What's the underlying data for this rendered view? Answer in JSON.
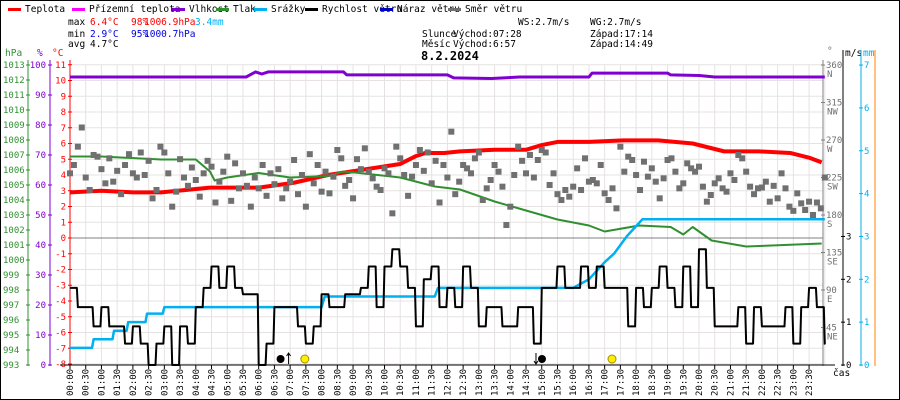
{
  "legend": [
    {
      "label": "Teplota",
      "color": "#ff0000"
    },
    {
      "label": "Přízemní teplota",
      "color": "#ff00ff"
    },
    {
      "label": "Vlhkost",
      "color": "#8000d0"
    },
    {
      "label": "Tlak",
      "color": "#309030"
    },
    {
      "label": "Srážky",
      "color": "#00b0f0"
    },
    {
      "label": "Rychlost větru",
      "color": "#000000"
    },
    {
      "label": "Náraz větru",
      "color": "#0000c0"
    },
    {
      "label": "Směr větru",
      "color": "#707070"
    }
  ],
  "stats": {
    "max_label": "max",
    "min_label": "min",
    "avg_label": "avg",
    "max_temp": "6.4°C",
    "max_hum": "98%",
    "max_press": "1006.9hPa",
    "max_rain": "3.4mm",
    "min_temp": "2.9°C",
    "min_hum": "95%",
    "min_press": "1000.7hPa",
    "avg_temp": "4.7°C"
  },
  "wind_info": {
    "ws": "WS:2.7m/s",
    "wg": "WG:2.7m/s"
  },
  "sun": {
    "label": "Slunce",
    "rise": "Východ:07:28",
    "set": "Západ:17:14"
  },
  "moon": {
    "label": "Měsíc",
    "rise": "Východ:6:57",
    "set": "Západ:14:49"
  },
  "axes_units": {
    "pressure": "hPa",
    "humidity": "%",
    "temp": "°C",
    "direction": "°",
    "speed": "m/s",
    "rain": "mm",
    "time": "čas"
  },
  "colors": {
    "temp": "#ff0000",
    "humidity": "#8000d0",
    "pressure": "#309030",
    "rain": "#00b0f0",
    "wind": "#000000",
    "direction": "#707070",
    "rain_axis": "#00b0f0",
    "extra_axis": "#ff8000"
  },
  "chart_data": {
    "type": "line",
    "title": "8.2.2024",
    "xlabel": "čas",
    "x_unit": "hours",
    "xlim": [
      0,
      24
    ],
    "x_ticks": [
      "00:00",
      "00:30",
      "01:00",
      "01:30",
      "02:00",
      "02:30",
      "03:00",
      "03:30",
      "04:00",
      "04:30",
      "05:00",
      "05:30",
      "06:00",
      "06:30",
      "07:00",
      "07:30",
      "08:00",
      "08:30",
      "09:00",
      "09:30",
      "10:00",
      "10:30",
      "11:00",
      "11:30",
      "12:00",
      "12:30",
      "13:00",
      "13:30",
      "14:00",
      "14:30",
      "15:00",
      "15:30",
      "16:00",
      "16:30",
      "17:00",
      "17:30",
      "18:00",
      "18:30",
      "19:00",
      "19:30",
      "20:00",
      "20:30",
      "21:00",
      "21:30",
      "22:00",
      "22:30",
      "23:00",
      "23:30"
    ],
    "axes": {
      "pressure": {
        "label": "hPa",
        "range": [
          993,
          1013
        ]
      },
      "humidity": {
        "label": "%",
        "range": [
          0,
          100
        ],
        "ticks": [
          0,
          10,
          20,
          30,
          40,
          50,
          60,
          70,
          80,
          90,
          100
        ]
      },
      "temp": {
        "label": "°C",
        "range": [
          -8,
          11
        ]
      },
      "direction": {
        "label": "°",
        "ticks": [
          {
            "v": 45,
            "c": "NE"
          },
          {
            "v": 90,
            "c": "E"
          },
          {
            "v": 135,
            "c": "SE"
          },
          {
            "v": 180,
            "c": "S"
          },
          {
            "v": 225,
            "c": "SW"
          },
          {
            "v": 270,
            "c": "W"
          },
          {
            "v": 315,
            "c": "NW"
          },
          {
            "v": 360,
            "c": "N"
          }
        ]
      },
      "speed": {
        "label": "m/s",
        "range": [
          0,
          7
        ],
        "ticks": [
          0,
          1,
          2,
          3
        ]
      },
      "rain": {
        "label": "mm",
        "range": [
          0,
          7
        ],
        "ticks": [
          0,
          1,
          2,
          3,
          4,
          5,
          6,
          7
        ]
      }
    },
    "series": [
      {
        "name": "Teplota",
        "axis": "temp",
        "points": [
          [
            0,
            2.9
          ],
          [
            1,
            3.0
          ],
          [
            2,
            2.9
          ],
          [
            2.9,
            2.9
          ],
          [
            4.45,
            3.2
          ],
          [
            6,
            3.2
          ],
          [
            7.1,
            3.5
          ],
          [
            8.2,
            4.0
          ],
          [
            9.2,
            4.3
          ],
          [
            10.5,
            4.7
          ],
          [
            11,
            5.2
          ],
          [
            11.3,
            5.4
          ],
          [
            11.9,
            5.4
          ],
          [
            12.4,
            5.5
          ],
          [
            13.5,
            5.6
          ],
          [
            14.5,
            5.6
          ],
          [
            15,
            5.9
          ],
          [
            15.5,
            6.1
          ],
          [
            16.5,
            6.1
          ],
          [
            17.6,
            6.2
          ],
          [
            18.7,
            6.2
          ],
          [
            19.8,
            6.0
          ],
          [
            20.8,
            5.5
          ],
          [
            21.9,
            5.5
          ],
          [
            22.9,
            5.4
          ],
          [
            23.5,
            5.1
          ],
          [
            23.9,
            4.8
          ]
        ]
      },
      {
        "name": "Vlhkost",
        "axis": "humidity",
        "points": [
          [
            0,
            96
          ],
          [
            5.6,
            96
          ],
          [
            5.9,
            97.7
          ],
          [
            6.1,
            97
          ],
          [
            6.3,
            97.7
          ],
          [
            8.7,
            97.7
          ],
          [
            8.8,
            96.7
          ],
          [
            12,
            96.7
          ],
          [
            12.2,
            95.7
          ],
          [
            13.4,
            95.5
          ],
          [
            14.3,
            96
          ],
          [
            16.5,
            96
          ],
          [
            16.6,
            97.3
          ],
          [
            19,
            97.3
          ],
          [
            19.1,
            96.7
          ],
          [
            20,
            96.5
          ],
          [
            20.5,
            96
          ],
          [
            24,
            96
          ]
        ]
      },
      {
        "name": "Tlak",
        "axis": "pressure",
        "points": [
          [
            0,
            1006.9
          ],
          [
            1,
            1006.9
          ],
          [
            2.9,
            1006.7
          ],
          [
            4,
            1006.7
          ],
          [
            4.45,
            1005.9
          ],
          [
            4.6,
            1005.3
          ],
          [
            5,
            1005.5
          ],
          [
            6,
            1005.8
          ],
          [
            7,
            1005.5
          ],
          [
            8.2,
            1005.6
          ],
          [
            8.7,
            1005.9
          ],
          [
            9.2,
            1005.8
          ],
          [
            10.5,
            1005.5
          ],
          [
            11.6,
            1004.9
          ],
          [
            12.4,
            1004.7
          ],
          [
            13.5,
            1003.9
          ],
          [
            14.5,
            1003.3
          ],
          [
            15.5,
            1002.7
          ],
          [
            16.5,
            1002.3
          ],
          [
            17,
            1001.9
          ],
          [
            18.1,
            1002.3
          ],
          [
            19.1,
            1002.2
          ],
          [
            19.5,
            1001.7
          ],
          [
            19.8,
            1002.2
          ],
          [
            20.4,
            1001.3
          ],
          [
            21.5,
            1000.9
          ],
          [
            22.7,
            1001.0
          ],
          [
            23.9,
            1001.1
          ]
        ]
      },
      {
        "name": "Srážky",
        "axis": "rain",
        "points": [
          [
            0,
            0.4
          ],
          [
            0.7,
            0.4
          ],
          [
            0.75,
            0.6
          ],
          [
            1.35,
            0.6
          ],
          [
            1.4,
            0.8
          ],
          [
            1.8,
            0.8
          ],
          [
            1.85,
            1.0
          ],
          [
            2.4,
            1.0
          ],
          [
            2.45,
            1.2
          ],
          [
            2.95,
            1.2
          ],
          [
            3.0,
            1.35
          ],
          [
            8.0,
            1.35
          ],
          [
            8.1,
            1.6
          ],
          [
            11.6,
            1.6
          ],
          [
            11.7,
            1.8
          ],
          [
            16.0,
            1.8
          ],
          [
            16.5,
            2.0
          ],
          [
            17.0,
            2.4
          ],
          [
            17.3,
            2.6
          ],
          [
            17.7,
            3.0
          ],
          [
            18.2,
            3.4
          ],
          [
            24,
            3.4
          ]
        ]
      },
      {
        "name": "Rychlost větru",
        "axis": "speed",
        "step": 0.25,
        "values": [
          1.8,
          1.35,
          1.35,
          0.9,
          1.35,
          0.9,
          0.9,
          0.5,
          0.9,
          0.5,
          0,
          0.5,
          0.9,
          0,
          0.9,
          0.5,
          1.35,
          1.8,
          2.3,
          1.8,
          2.3,
          1.8,
          1.65,
          1.65,
          0,
          0.5,
          1.35,
          1.35,
          1.35,
          0.9,
          0.5,
          0.9,
          1.65,
          1.35,
          1.35,
          1.65,
          1.65,
          1.8,
          2.3,
          1.35,
          2.3,
          2.7,
          2.3,
          1.8,
          0.9,
          2.0,
          2.3,
          1.35,
          1.8,
          1.35,
          2.3,
          1.8,
          0.9,
          1.35,
          1.35,
          0.9,
          0.9,
          1.35,
          1.35,
          0.5,
          1.8,
          1.8,
          2.3,
          1.8,
          1.8,
          2.3,
          1.8,
          2.3,
          1.8,
          1.8,
          1.8,
          0.9,
          1.8,
          1.35,
          1.8,
          2.3,
          1.8,
          1.35,
          2.3,
          1.35,
          2.7,
          1.8,
          0.9,
          0.9,
          0.9,
          1.35,
          0.5,
          1.35,
          0.9,
          0.9,
          0.9,
          1.35,
          0.5,
          1.35,
          1.8,
          1.35,
          0.5
        ]
      },
      {
        "name": "Směr větru",
        "axis": "direction",
        "type": "scatter",
        "step": 0.125,
        "values": [
          230,
          240,
          262,
          285,
          225,
          210,
          252,
          250,
          235,
          218,
          248,
          220,
          233,
          205,
          240,
          253,
          230,
          225,
          255,
          228,
          245,
          200,
          210,
          262,
          255,
          230,
          190,
          208,
          247,
          225,
          215,
          237,
          222,
          202,
          230,
          245,
          238,
          195,
          220,
          232,
          250,
          197,
          242,
          212,
          230,
          215,
          190,
          225,
          212,
          240,
          203,
          230,
          217,
          235,
          200,
          212,
          220,
          246,
          205,
          228,
          190,
          253,
          218,
          240,
          208,
          232,
          206,
          226,
          258,
          248,
          215,
          222,
          200,
          247,
          235,
          260,
          232,
          224,
          214,
          210,
          236,
          230,
          182,
          262,
          248,
          228,
          203,
          226,
          240,
          258,
          233,
          255,
          218,
          245,
          195,
          240,
          225,
          280,
          205,
          220,
          240,
          236,
          230,
          248,
          255,
          198,
          212,
          222,
          240,
          232,
          214,
          168,
          190,
          228,
          262,
          245,
          230,
          252,
          225,
          246,
          258,
          255,
          216,
          230,
          205,
          198,
          210,
          202,
          214,
          236,
          210,
          248,
          220,
          222,
          218,
          240,
          206,
          198,
          212,
          188,
          262,
          232,
          250,
          246,
          228,
          210,
          244,
          226,
          236,
          220,
          200,
          224,
          246,
          248,
          232,
          212,
          218,
          242,
          236,
          232,
          238,
          214,
          196,
          204,
          218,
          224,
          212,
          208,
          230,
          222,
          252,
          248,
          232,
          214,
          205,
          212,
          213,
          220,
          196,
          215,
          200,
          230,
          212,
          190,
          185,
          206,
          194,
          186,
          196,
          180,
          195,
          188,
          225
        ]
      }
    ],
    "events": [
      {
        "type": "moonrise",
        "time": "6:57"
      },
      {
        "type": "sunrise",
        "time": "07:28"
      },
      {
        "type": "moonset",
        "time": "14:49"
      },
      {
        "type": "sunset",
        "time": "17:14"
      }
    ]
  }
}
